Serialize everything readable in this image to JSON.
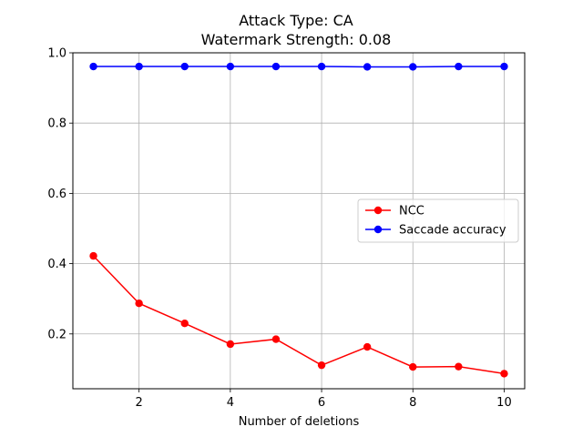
{
  "chart_data": {
    "type": "line",
    "title": "Attack Type: CA",
    "subtitle": "Watermark Strength: 0.08",
    "xlabel": "Number of deletions",
    "ylabel": "",
    "x": [
      1,
      2,
      3,
      4,
      5,
      6,
      7,
      8,
      9,
      10
    ],
    "xlim": [
      0.55,
      10.45
    ],
    "ylim": [
      0.044,
      1.0
    ],
    "xticks": [
      2,
      4,
      6,
      8,
      10
    ],
    "yticks": [
      0.2,
      0.4,
      0.6,
      0.8,
      1.0
    ],
    "xtick_labels": [
      "2",
      "4",
      "6",
      "8",
      "10"
    ],
    "ytick_labels": [
      "0.2",
      "0.4",
      "0.6",
      "0.8",
      "1.0"
    ],
    "grid": true,
    "legend_position": "center-right",
    "series": [
      {
        "name": "NCC",
        "color": "#ff0000",
        "values": [
          0.422,
          0.287,
          0.23,
          0.171,
          0.185,
          0.111,
          0.163,
          0.106,
          0.107,
          0.087
        ]
      },
      {
        "name": "Saccade accuracy",
        "color": "#0000ff",
        "values": [
          0.961,
          0.961,
          0.961,
          0.961,
          0.961,
          0.961,
          0.96,
          0.96,
          0.961,
          0.961
        ]
      }
    ]
  }
}
